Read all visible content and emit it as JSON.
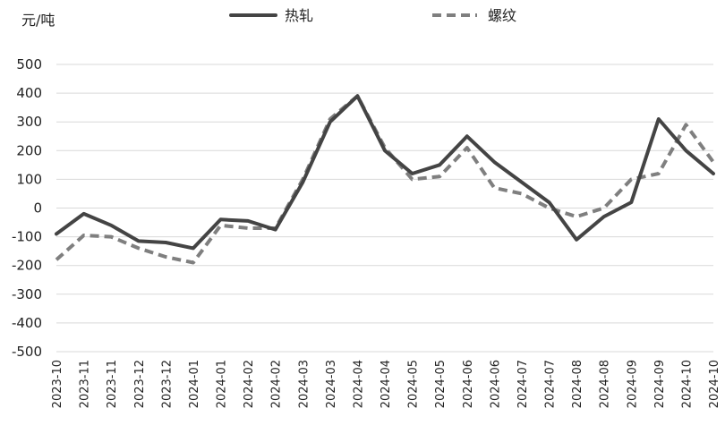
{
  "chart_data": {
    "type": "line",
    "ylabel": "元/吨",
    "ylim": [
      -500,
      500
    ],
    "yticks": [
      500,
      400,
      300,
      200,
      100,
      0,
      -100,
      -200,
      -300,
      -400,
      -500
    ],
    "x": [
      "2023-10",
      "2023-11",
      "2023-11",
      "2023-12",
      "2023-12",
      "2024-01",
      "2024-01",
      "2024-02",
      "2024-02",
      "2024-03",
      "2024-03",
      "2024-04",
      "2024-04",
      "2024-05",
      "2024-05",
      "2024-06",
      "2024-06",
      "2024-07",
      "2024-07",
      "2024-08",
      "2024-08",
      "2024-09",
      "2024-09",
      "2024-10",
      "2024-10"
    ],
    "legend": {
      "position": "top"
    },
    "grid": true,
    "series": [
      {
        "name": "热轧",
        "style": "solid",
        "color": "#444444",
        "values": [
          -90,
          -20,
          -60,
          -115,
          -120,
          -140,
          -40,
          -45,
          -75,
          90,
          300,
          390,
          200,
          120,
          150,
          250,
          160,
          90,
          20,
          -110,
          -30,
          20,
          310,
          200,
          120
        ]
      },
      {
        "name": "螺纹",
        "style": "dashed",
        "color": "#7f7f7f",
        "values": [
          -180,
          -95,
          -100,
          -140,
          -170,
          -190,
          -60,
          -70,
          -70,
          100,
          310,
          390,
          210,
          100,
          110,
          210,
          70,
          50,
          0,
          -30,
          0,
          100,
          120,
          290,
          160
        ]
      }
    ]
  }
}
